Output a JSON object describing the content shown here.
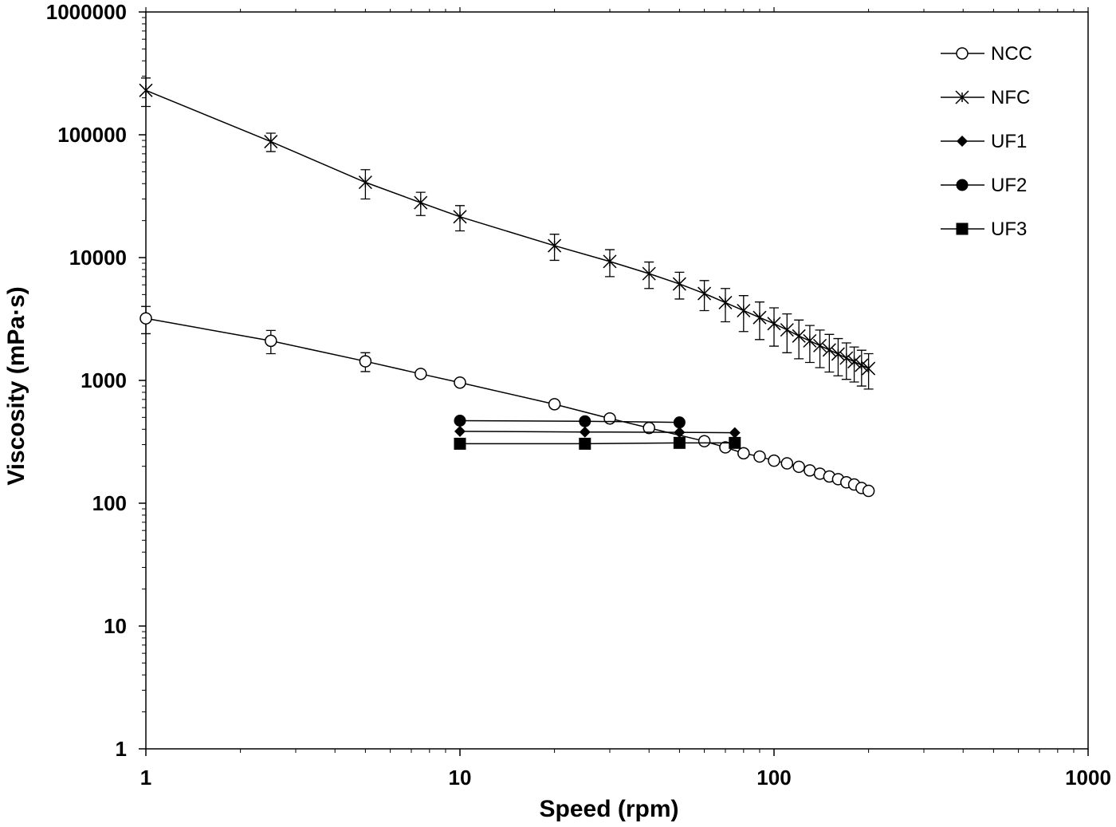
{
  "chart_data": {
    "type": "scatter",
    "title": "",
    "xlabel": "Speed (rpm)",
    "ylabel": "Viscosity (mPa·s)",
    "xscale": "log",
    "yscale": "log",
    "xlim": [
      1,
      1000
    ],
    "ylim": [
      1,
      1000000
    ],
    "x_ticks": [
      1,
      10,
      100,
      1000
    ],
    "x_tick_labels": [
      "1",
      "10",
      "100",
      "1000"
    ],
    "y_ticks": [
      1,
      10,
      100,
      1000,
      10000,
      100000,
      1000000
    ],
    "y_tick_labels": [
      "1",
      "10",
      "100",
      "1000",
      "10000",
      "100000",
      "1000000"
    ],
    "grid": false,
    "legend_position": "top-right",
    "series": [
      {
        "name": "NCC",
        "marker": "open-circle",
        "x": [
          1,
          2.5,
          5,
          7.5,
          10,
          20,
          30,
          40,
          60,
          70,
          80,
          90,
          100,
          110,
          120,
          130,
          140,
          150,
          160,
          170,
          180,
          190,
          200
        ],
        "y": [
          3200,
          2100,
          1430,
          1130,
          960,
          640,
          490,
          410,
          320,
          285,
          255,
          240,
          222,
          211,
          198,
          185,
          174,
          165,
          157,
          148,
          142,
          133,
          126
        ],
        "error": [
          800,
          450,
          250,
          0,
          0,
          0,
          0,
          0,
          0,
          0,
          0,
          0,
          0,
          0,
          0,
          0,
          0,
          0,
          0,
          0,
          0,
          0,
          0
        ]
      },
      {
        "name": "NFC",
        "marker": "asterisk",
        "x": [
          1,
          2.5,
          5,
          7.5,
          10,
          20,
          30,
          40,
          50,
          60,
          70,
          80,
          90,
          100,
          110,
          120,
          130,
          140,
          150,
          160,
          170,
          180,
          190,
          200
        ],
        "y": [
          230000,
          88000,
          41000,
          28000,
          21500,
          12500,
          9300,
          7400,
          6100,
          5100,
          4300,
          3700,
          3250,
          2900,
          2580,
          2300,
          2100,
          1920,
          1770,
          1640,
          1520,
          1420,
          1330,
          1250
        ],
        "error": [
          60000,
          15000,
          11000,
          6000,
          5000,
          3000,
          2300,
          1800,
          1500,
          1400,
          1300,
          1200,
          1100,
          1000,
          900,
          800,
          700,
          650,
          600,
          550,
          500,
          450,
          430,
          400
        ]
      },
      {
        "name": "UF1",
        "marker": "filled-diamond",
        "x": [
          10,
          25,
          50,
          75
        ],
        "y": [
          385,
          380,
          378,
          375
        ]
      },
      {
        "name": "UF2",
        "marker": "filled-circle",
        "x": [
          10,
          25,
          50
        ],
        "y": [
          470,
          465,
          455
        ]
      },
      {
        "name": "UF3",
        "marker": "filled-square",
        "x": [
          10,
          25,
          50,
          75
        ],
        "y": [
          305,
          305,
          310,
          310
        ]
      }
    ]
  }
}
